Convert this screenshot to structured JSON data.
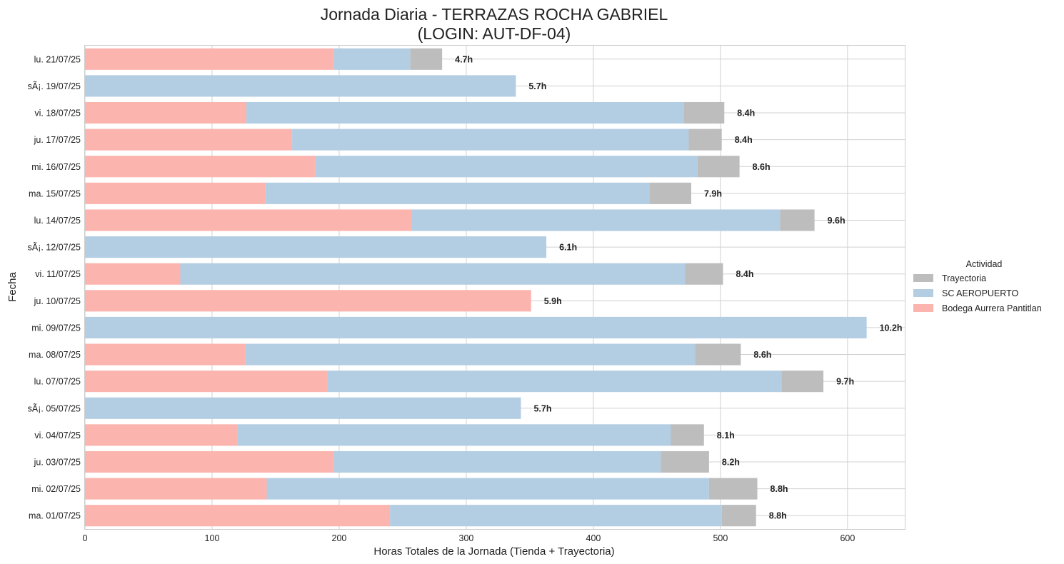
{
  "chart_data": {
    "type": "bar",
    "orientation": "horizontal",
    "stacked": true,
    "title": "Jornada Diaria - TERRAZAS ROCHA GABRIEL",
    "subtitle": "(LOGIN: AUT-DF-04)",
    "xlabel": "Horas Totales de la Jornada (Tienda + Trayectoria)",
    "ylabel": "Fecha",
    "xlim": [
      0,
      645
    ],
    "xticks": [
      0,
      100,
      200,
      300,
      400,
      500,
      600
    ],
    "grid": true,
    "legend": {
      "title": "Actividad",
      "placement": "right",
      "entries": [
        "Trayectoria",
        "SC AEROPUERTO",
        "Bodega Aurrera Pantitlan"
      ]
    },
    "colors": {
      "Bodega Aurrera Pantitlan": "#fbb4ae",
      "SC AEROPUERTO": "#b3cde3",
      "Trayectoria": "#bdbdbd"
    },
    "stack_order": [
      "Bodega Aurrera Pantitlan",
      "SC AEROPUERTO",
      "Trayectoria"
    ],
    "categories": [
      "lu. 21/07/25",
      "sÃ¡. 19/07/25",
      "vi. 18/07/25",
      "ju. 17/07/25",
      "mi. 16/07/25",
      "ma. 15/07/25",
      "lu. 14/07/25",
      "sÃ¡. 12/07/25",
      "vi. 11/07/25",
      "ju. 10/07/25",
      "mi. 09/07/25",
      "ma. 08/07/25",
      "lu. 07/07/25",
      "sÃ¡. 05/07/25",
      "vi. 04/07/25",
      "ju. 03/07/25",
      "mi. 02/07/25",
      "ma. 01/07/25"
    ],
    "series": [
      {
        "name": "Bodega Aurrera Pantitlan",
        "values": [
          196,
          0,
          127,
          163,
          181,
          142,
          257,
          0,
          75,
          351,
          0,
          126,
          191,
          0,
          120,
          196,
          143,
          240
        ]
      },
      {
        "name": "SC AEROPUERTO",
        "values": [
          60,
          339,
          344,
          312,
          301,
          302,
          290,
          363,
          397,
          0,
          615,
          354,
          357,
          343,
          341,
          257,
          348,
          261
        ]
      },
      {
        "name": "Trayectoria",
        "values": [
          25,
          0,
          32,
          26,
          33,
          33,
          27,
          0,
          30,
          0,
          0,
          36,
          33,
          0,
          26,
          38,
          38,
          27
        ]
      }
    ],
    "data_labels": [
      "4.7h",
      "5.7h",
      "8.4h",
      "8.4h",
      "8.6h",
      "7.9h",
      "9.6h",
      "6.1h",
      "8.4h",
      "5.9h",
      "10.2h",
      "8.6h",
      "9.7h",
      "5.7h",
      "8.1h",
      "8.2h",
      "8.8h",
      "8.8h"
    ]
  }
}
